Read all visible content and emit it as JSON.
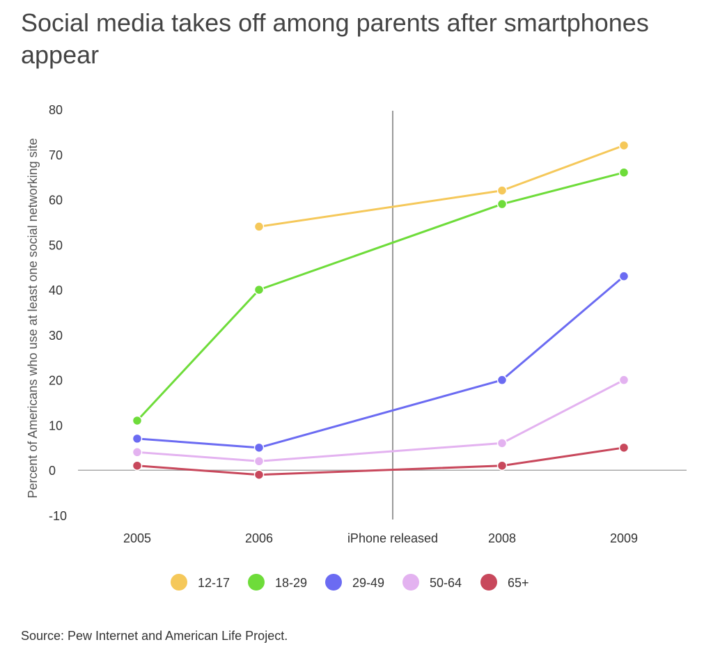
{
  "title": "Social media takes off among parents after smartphones appear",
  "source": "Source: Pew Internet and American Life Project.",
  "chart_data": {
    "type": "line",
    "title": "Social media takes off among parents after smartphones appear",
    "ylabel": "Percent of Americans who use at least one social networking site",
    "xlabel": "",
    "categories": [
      "2005",
      "2006",
      "iPhone released",
      "2008",
      "2009"
    ],
    "yticks": [
      "80",
      "70",
      "60",
      "50",
      "40",
      "30",
      "20",
      "10",
      "0",
      "-10"
    ],
    "ylim": [
      -10,
      80
    ],
    "grid": false,
    "legend_position": "bottom",
    "reference_line": {
      "category": "iPhone released"
    },
    "series": [
      {
        "name": "12-17",
        "color": "#F5C85A",
        "points": [
          [
            1,
            54
          ],
          [
            3,
            62
          ],
          [
            4,
            72
          ]
        ]
      },
      {
        "name": "18-29",
        "color": "#6EDC3A",
        "points": [
          [
            0,
            11
          ],
          [
            1,
            40
          ],
          [
            3,
            59
          ],
          [
            4,
            66
          ]
        ]
      },
      {
        "name": "29-49",
        "color": "#6B6BF2",
        "points": [
          [
            0,
            7
          ],
          [
            1,
            5
          ],
          [
            3,
            20
          ],
          [
            4,
            43
          ]
        ]
      },
      {
        "name": "50-64",
        "color": "#E3B2F0",
        "points": [
          [
            0,
            4
          ],
          [
            1,
            2
          ],
          [
            3,
            6
          ],
          [
            4,
            20
          ]
        ]
      },
      {
        "name": "65+",
        "color": "#C8485C",
        "points": [
          [
            0,
            1
          ],
          [
            1,
            -1
          ],
          [
            3,
            1
          ],
          [
            4,
            5
          ]
        ]
      }
    ]
  }
}
